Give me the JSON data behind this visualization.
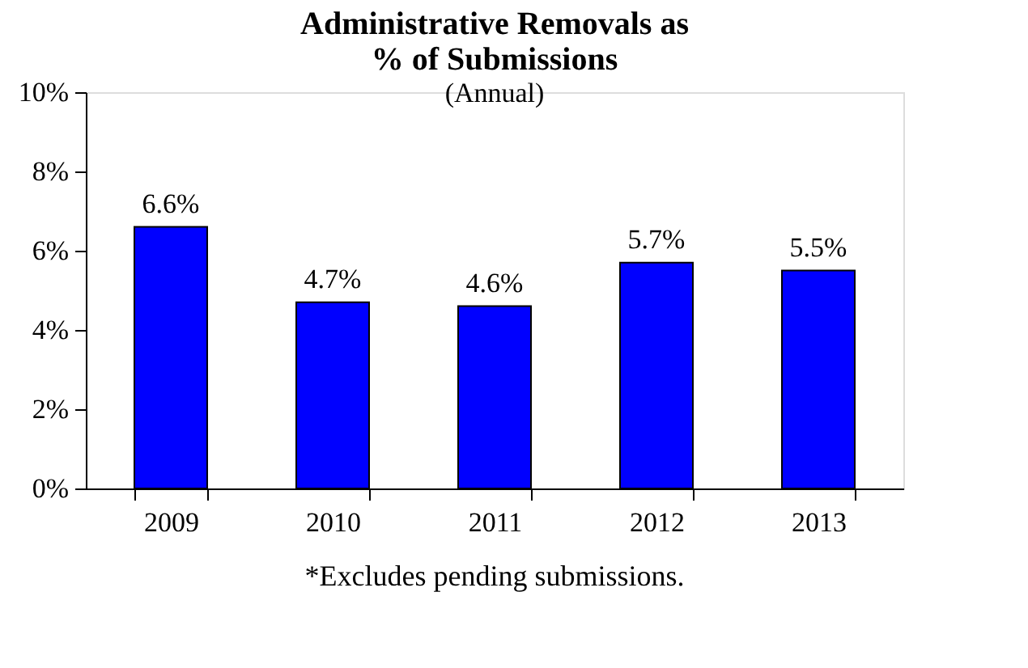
{
  "chart_data": {
    "type": "bar",
    "title": "Administrative Removals as\n% of Submissions",
    "subtitle": "(Annual)",
    "categories": [
      "2009",
      "2010",
      "2011",
      "2012",
      "2013"
    ],
    "values": [
      6.6,
      4.7,
      4.6,
      5.7,
      5.5
    ],
    "value_labels": [
      "6.6%",
      "4.7%",
      "4.6%",
      "5.7%",
      "5.5%"
    ],
    "color": "#0000ff",
    "ylim": [
      0,
      10
    ],
    "yticks": [
      {
        "value": 0,
        "label": "0%"
      },
      {
        "value": 2,
        "label": "2%"
      },
      {
        "value": 4,
        "label": "4%"
      },
      {
        "value": 6,
        "label": "6%"
      },
      {
        "value": 8,
        "label": "8%"
      },
      {
        "value": 10,
        "label": "10%"
      }
    ],
    "grid": false,
    "annotations": [
      "*Excludes pending submissions."
    ]
  }
}
